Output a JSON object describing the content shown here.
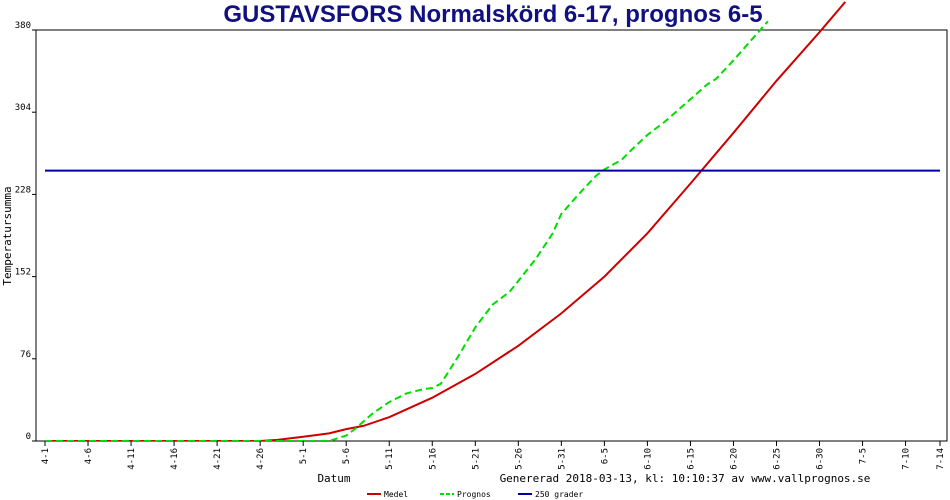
{
  "chart_data": {
    "type": "line",
    "title": "GUSTAVSFORS Normalskörd 6-17, prognos 6-5",
    "xlabel": "Datum",
    "ylabel": "Temperatursumma",
    "ylim": [
      0,
      380
    ],
    "y_ticks": [
      "0",
      "76",
      "152",
      "228",
      "304",
      "380"
    ],
    "x_ticks": [
      "4-1",
      "4-6",
      "4-11",
      "4-16",
      "4-21",
      "4-26",
      "5-1",
      "5-6",
      "5-11",
      "5-16",
      "5-21",
      "5-26",
      "5-31",
      "6-5",
      "6-10",
      "6-15",
      "6-20",
      "6-25",
      "6-30",
      "7-5",
      "7-10",
      "7-14"
    ],
    "x_tick_days": [
      0,
      5,
      10,
      15,
      20,
      25,
      30,
      35,
      40,
      45,
      50,
      55,
      60,
      65,
      70,
      75,
      80,
      85,
      90,
      95,
      100,
      104
    ],
    "xlim_days": [
      0,
      104
    ],
    "grid": false,
    "legend_position": "bottom",
    "footer": "Genererad 2018-03-13, kl: 10:10:37 av www.vallprognos.se",
    "series": [
      {
        "name": "Medel",
        "color": "#cc0000",
        "style": "solid",
        "x_days": [
          0,
          25,
          27,
          30,
          33,
          35,
          37,
          40,
          45,
          50,
          55,
          60,
          65,
          70,
          75,
          80,
          85,
          90,
          93
        ],
        "values": [
          0,
          0,
          1,
          4,
          7,
          11,
          14,
          22,
          40,
          62,
          88,
          118,
          152,
          192,
          238,
          285,
          333,
          378,
          406
        ]
      },
      {
        "name": "Prognos",
        "color": "#00dd00",
        "style": "dashed",
        "x_days": [
          0,
          33,
          35,
          36,
          38,
          40,
          42,
          44,
          45,
          46,
          48,
          50,
          52,
          54,
          55,
          57,
          59,
          60,
          62,
          64,
          65,
          67,
          68,
          70,
          72,
          75,
          77,
          78,
          80,
          82,
          84
        ],
        "values": [
          0,
          0,
          5,
          11,
          25,
          36,
          44,
          48,
          49,
          53,
          78,
          105,
          126,
          138,
          148,
          168,
          192,
          210,
          228,
          245,
          251,
          260,
          268,
          283,
          295,
          316,
          330,
          335,
          352,
          370,
          388
        ]
      },
      {
        "name": "250 grader",
        "color": "#0000a0",
        "style": "solid",
        "x_days": [
          0,
          104
        ],
        "values": [
          250,
          250
        ]
      }
    ]
  }
}
